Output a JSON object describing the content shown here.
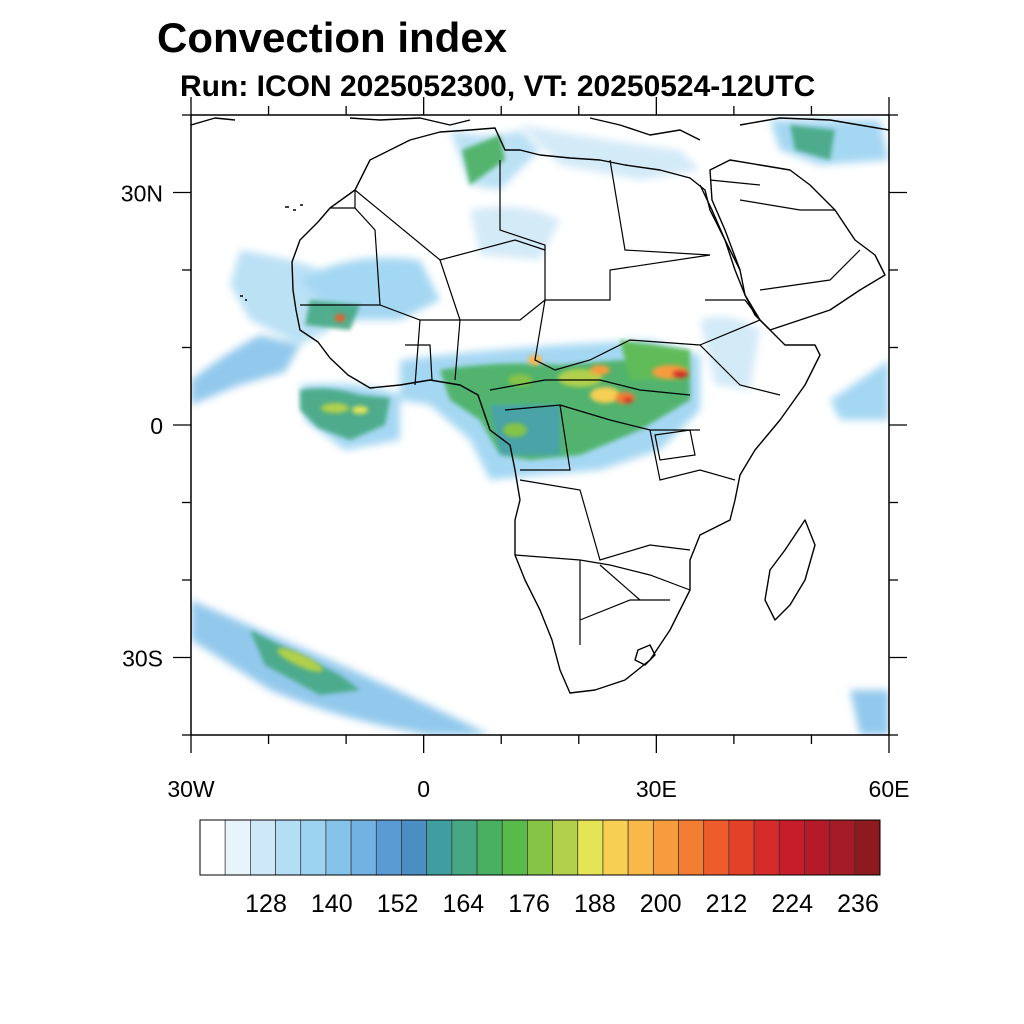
{
  "header": {
    "title": "Convection index",
    "subtitle": "Run: ICON 2025052300,  VT: 20250524-12UTC"
  },
  "map": {
    "region": "Africa",
    "extent_lon": [
      -30,
      60
    ],
    "extent_lat": [
      -40,
      40
    ],
    "lat_labels": [
      {
        "lat": 30,
        "text": "30N"
      },
      {
        "lat": 0,
        "text": "0"
      },
      {
        "lat": -30,
        "text": "30S"
      }
    ],
    "lon_labels": [
      {
        "lon": -30,
        "text": "30W"
      },
      {
        "lon": 0,
        "text": "0"
      },
      {
        "lon": 30,
        "text": "30E"
      },
      {
        "lon": 60,
        "text": "60E"
      }
    ]
  },
  "colorbar": {
    "colors": [
      "#ffffff",
      "#e8f4fb",
      "#cfe8f7",
      "#b4def4",
      "#9bd3f1",
      "#86c3ea",
      "#72b2e2",
      "#5b9bd3",
      "#4a8ec4",
      "#3f9e9f",
      "#45a882",
      "#48b060",
      "#58ba48",
      "#86c446",
      "#b2d04b",
      "#e5e457",
      "#f7cf52",
      "#f9b84a",
      "#f79c3e",
      "#f47d34",
      "#ee5b2c",
      "#e34228",
      "#d62b2a",
      "#c51e2a",
      "#b41a28",
      "#a31b24",
      "#8c1a1e"
    ],
    "labels": [
      "128",
      "140",
      "152",
      "164",
      "176",
      "188",
      "200",
      "212",
      "224",
      "236"
    ]
  }
}
